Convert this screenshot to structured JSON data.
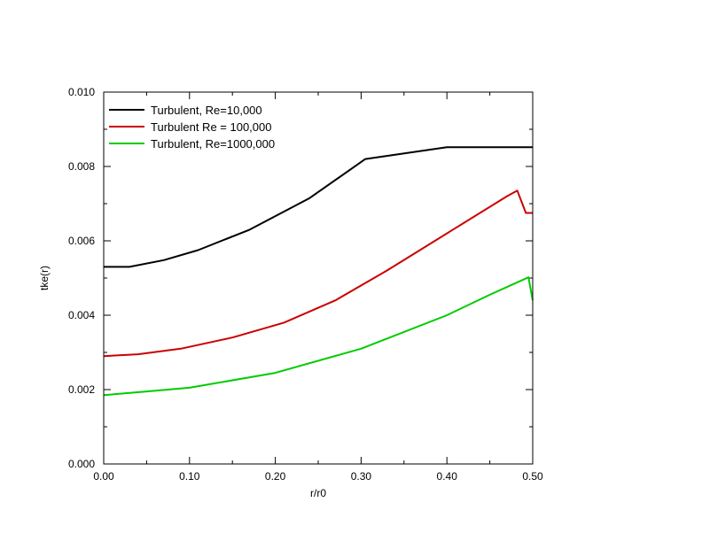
{
  "chart_data": {
    "type": "line",
    "title": "",
    "xlabel": "r/r0",
    "ylabel": "tke(r)",
    "xlim": [
      0,
      0.5
    ],
    "ylim": [
      0,
      0.01
    ],
    "x_ticks": [
      "0.00",
      "0.10",
      "0.20",
      "0.30",
      "0.40",
      "0.50"
    ],
    "y_ticks": [
      "0.000",
      "0.002",
      "0.004",
      "0.006",
      "0.008",
      "0.010"
    ],
    "grid": false,
    "legend_position": "top-left",
    "series": [
      {
        "name": "Turbulent, Re=10,000",
        "color": "#000000",
        "points": [
          [
            0.0,
            0.0053
          ],
          [
            0.03,
            0.0053
          ],
          [
            0.07,
            0.00548
          ],
          [
            0.11,
            0.00575
          ],
          [
            0.17,
            0.0063
          ],
          [
            0.24,
            0.00715
          ],
          [
            0.305,
            0.0082
          ],
          [
            0.4,
            0.00852
          ],
          [
            0.5,
            0.00852
          ]
        ]
      },
      {
        "name": "Turbulent Re = 100,000",
        "color": "#cc0000",
        "points": [
          [
            0.0,
            0.0029
          ],
          [
            0.04,
            0.00295
          ],
          [
            0.09,
            0.0031
          ],
          [
            0.15,
            0.0034
          ],
          [
            0.21,
            0.0038
          ],
          [
            0.27,
            0.0044
          ],
          [
            0.33,
            0.0052
          ],
          [
            0.4,
            0.0062
          ],
          [
            0.47,
            0.0072
          ],
          [
            0.482,
            0.00735
          ],
          [
            0.492,
            0.00675
          ],
          [
            0.5,
            0.00675
          ]
        ]
      },
      {
        "name": "Turbulent, Re=1000,000",
        "color": "#00cc00",
        "points": [
          [
            0.0,
            0.00185
          ],
          [
            0.05,
            0.00195
          ],
          [
            0.1,
            0.00205
          ],
          [
            0.2,
            0.00245
          ],
          [
            0.3,
            0.0031
          ],
          [
            0.4,
            0.004
          ],
          [
            0.45,
            0.00455
          ],
          [
            0.495,
            0.00502
          ],
          [
            0.5,
            0.0044
          ]
        ]
      }
    ]
  }
}
